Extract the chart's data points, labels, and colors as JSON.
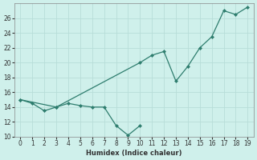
{
  "xlabel": "Humidex (Indice chaleur)",
  "line_color": "#2e7d6e",
  "bg_color": "#cff0eb",
  "grid_color": "#b8ddd8",
  "ylim": [
    10,
    28
  ],
  "xlim": [
    -0.5,
    19.5
  ],
  "yticks": [
    10,
    12,
    14,
    16,
    18,
    20,
    22,
    24,
    26
  ],
  "xticks": [
    0,
    1,
    2,
    3,
    4,
    5,
    6,
    7,
    8,
    9,
    10,
    11,
    12,
    13,
    14,
    15,
    16,
    17,
    18,
    19
  ],
  "line_a_x": [
    0,
    1,
    2,
    3,
    4,
    5,
    6,
    7,
    8,
    9,
    10
  ],
  "line_a_y": [
    15.0,
    14.5,
    13.5,
    14.0,
    14.5,
    14.2,
    14.0,
    14.0,
    11.5,
    10.2,
    11.5
  ],
  "line_b_x": [
    0,
    3,
    10,
    11,
    12,
    13,
    14,
    15,
    16,
    17,
    18,
    19
  ],
  "line_b_y": [
    15.0,
    14.0,
    20.0,
    21.0,
    21.5,
    17.5,
    19.5,
    22.0,
    23.5,
    27.0,
    26.5,
    27.5
  ]
}
